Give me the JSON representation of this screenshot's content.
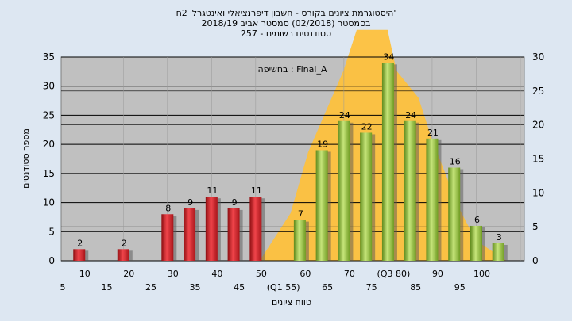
{
  "title_lines": [
    "'היסטוגרמת ציונים בקורס - חשבון דיפרנציאלי ואינטגרלי 2ח",
    "בסמסטר  (02/2018)  סמסטר אביב 2018/19",
    "סטודנטים רשומים - 257"
  ],
  "chart_data": {
    "type": "bar",
    "ylabel": "מספר סטודנטים",
    "xlabel": "טווח ציונים",
    "annotation": "בחשיפה : Final_A",
    "left_axis": {
      "ylim": [
        0,
        35
      ],
      "ticks": [
        0,
        5,
        10,
        15,
        20,
        25,
        30,
        35
      ]
    },
    "right_axis": {
      "ylim": [
        0,
        30
      ],
      "ticks": [
        0,
        5,
        10,
        15,
        20,
        25,
        30
      ]
    },
    "grid": true,
    "x_tick_labels_upper": [
      "10",
      "20",
      "30",
      "40",
      "50",
      "60",
      "70",
      "(Q3 80)",
      "90",
      "100"
    ],
    "x_tick_labels_lower": [
      "5",
      "15",
      "25",
      "35",
      "45",
      "(Q1 55)",
      "65",
      "75",
      "85",
      "95"
    ],
    "bars": [
      {
        "x": 10,
        "value": 2,
        "label": "2",
        "color": "red"
      },
      {
        "x": 20,
        "value": 2,
        "label": "2",
        "color": "red"
      },
      {
        "x": 30,
        "value": 8,
        "label": "8",
        "color": "red"
      },
      {
        "x": 35,
        "value": 9,
        "label": "9",
        "color": "red"
      },
      {
        "x": 40,
        "value": 11,
        "label": "11",
        "color": "red"
      },
      {
        "x": 45,
        "value": 9,
        "label": "9",
        "color": "red"
      },
      {
        "x": 50,
        "value": 11,
        "label": "11",
        "color": "red"
      },
      {
        "x": 60,
        "value": 7,
        "label": "7",
        "color": "green"
      },
      {
        "x": 65,
        "value": 19,
        "label": "19",
        "color": "green"
      },
      {
        "x": 70,
        "value": 24,
        "label": "24",
        "color": "green"
      },
      {
        "x": 75,
        "value": 22,
        "label": "22",
        "color": "green"
      },
      {
        "x": 80,
        "value": 34,
        "label": "34",
        "color": "green"
      },
      {
        "x": 85,
        "value": 24,
        "label": "24",
        "color": "green"
      },
      {
        "x": 90,
        "value": 21,
        "label": "21",
        "color": "green"
      },
      {
        "x": 95,
        "value": 16,
        "label": "16",
        "color": "green"
      },
      {
        "x": 100,
        "value": 6,
        "label": "6",
        "color": "green"
      },
      {
        "x": 105,
        "value": 3,
        "label": "3",
        "color": "green"
      }
    ],
    "area": {
      "x": [
        50,
        57,
        61,
        69,
        72,
        79,
        81,
        86,
        89,
        95,
        99,
        106
      ],
      "values": [
        0,
        7,
        16,
        28,
        34,
        34,
        28,
        24,
        18,
        8,
        3,
        0
      ]
    },
    "colors": {
      "red": "#d9262c",
      "green": "#93c13a",
      "area": "#fdc13d",
      "plot_bg": "#c0c0c0",
      "grid": "#000000"
    }
  }
}
